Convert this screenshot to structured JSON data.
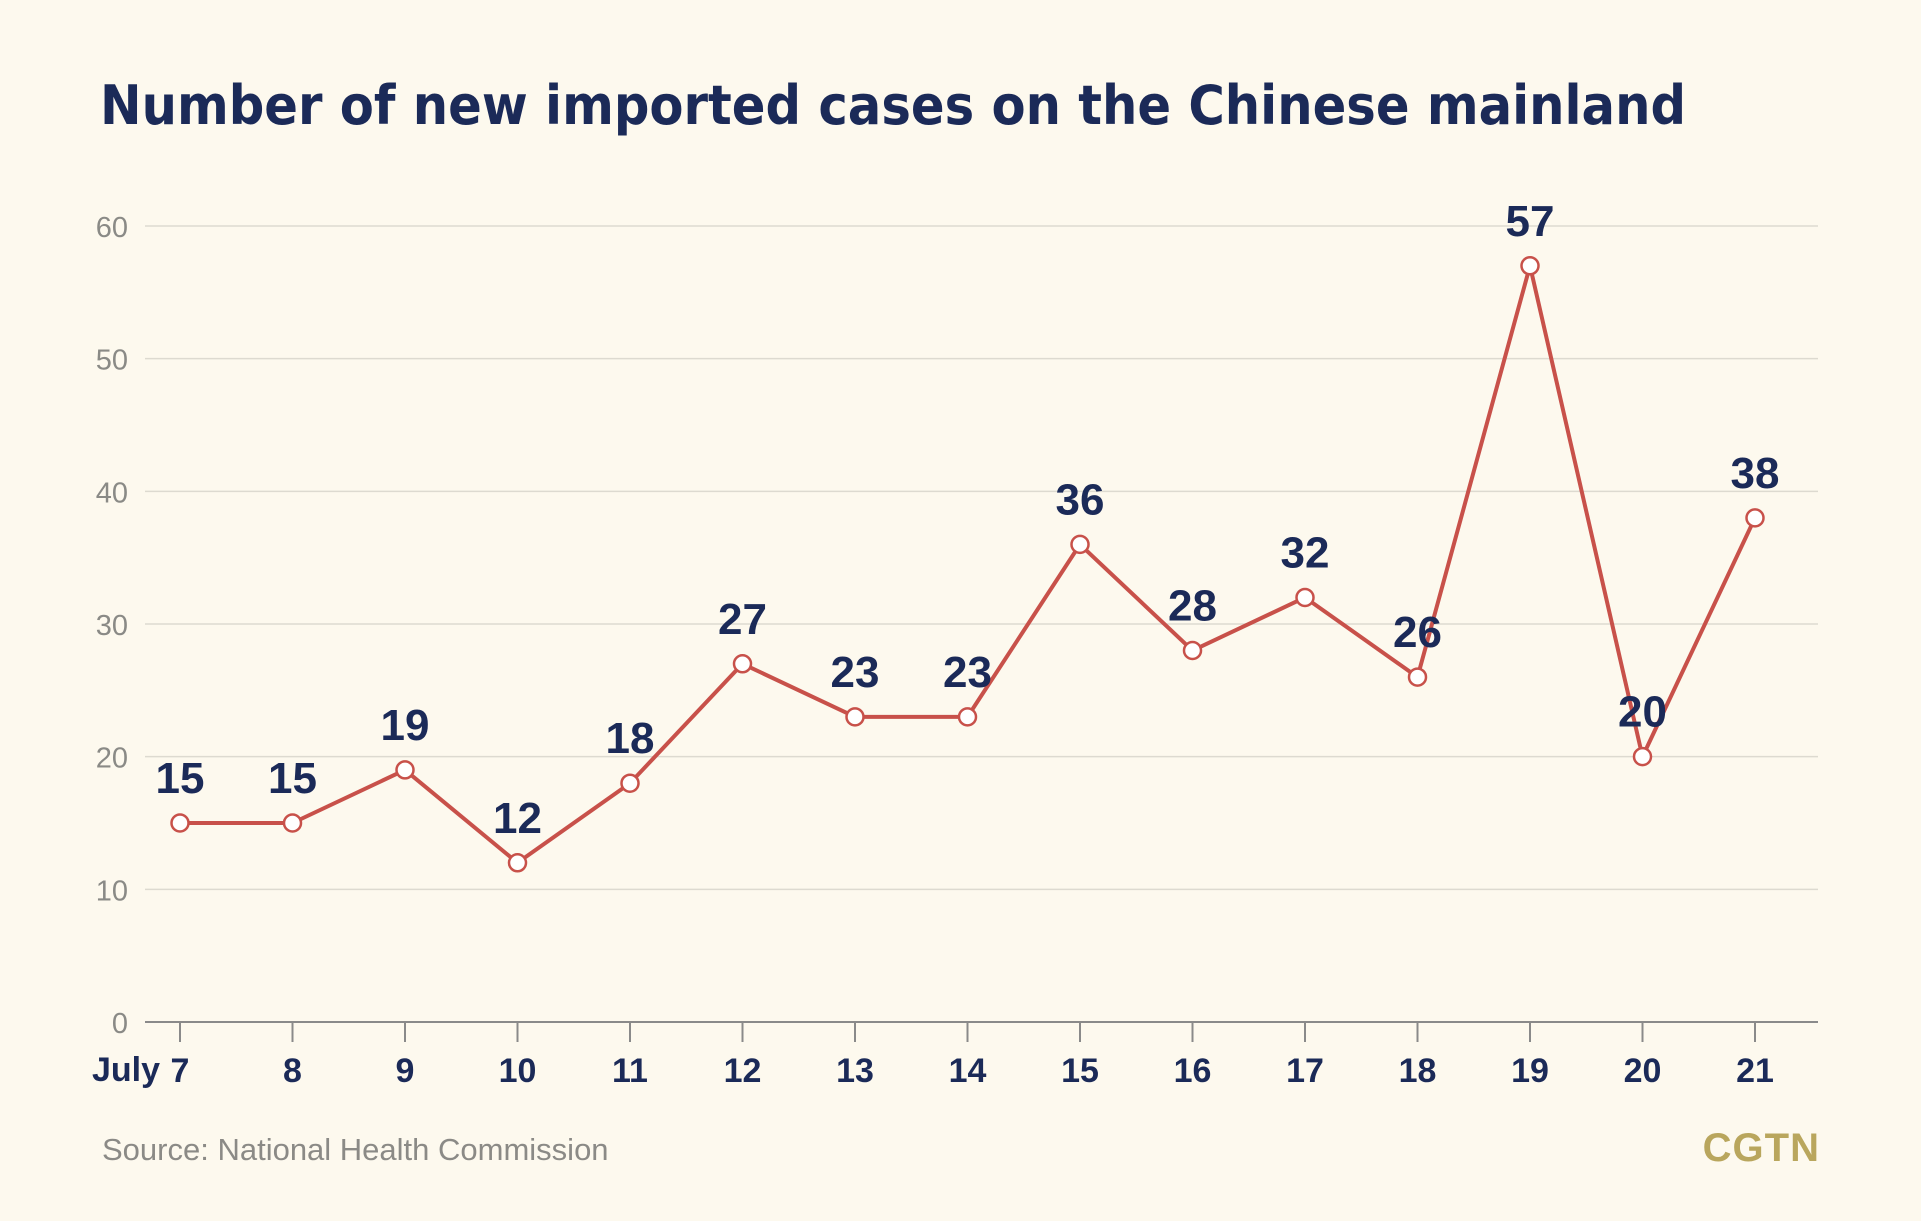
{
  "title": "Number of new imported cases on the Chinese mainland",
  "source": "Source: National Health Commission",
  "brand": {
    "logo": "CGTN",
    "color": "#b9a65d"
  },
  "colors": {
    "background": "#fdf9ee",
    "title": "#1b2a58",
    "line": "#c8514a",
    "marker_fill": "#ffffff",
    "grid": "#dddad0",
    "axis": "#8a8a8a",
    "y_tick_label": "#8a8a86",
    "x_tick_label": "#1b2a58",
    "data_label": "#1b2a58"
  },
  "chart_data": {
    "type": "line",
    "title": "Number of new imported cases on the Chinese mainland",
    "xlabel": "",
    "ylabel": "",
    "x_prefix_label": "July",
    "categories": [
      "7",
      "8",
      "9",
      "10",
      "11",
      "12",
      "13",
      "14",
      "15",
      "16",
      "17",
      "18",
      "19",
      "20",
      "21"
    ],
    "series": [
      {
        "values": [
          15,
          15,
          19,
          12,
          18,
          27,
          23,
          23,
          36,
          28,
          32,
          26,
          57,
          20,
          38
        ]
      }
    ],
    "data_labels": [
      "15",
      "15",
      "19",
      "12",
      "18",
      "27",
      "23",
      "23",
      "36",
      "28",
      "32",
      "26",
      "57",
      "20",
      "38"
    ],
    "ylim": [
      0,
      60
    ],
    "yticks": [
      0,
      10,
      20,
      30,
      40,
      50,
      60
    ],
    "grid": true,
    "legend": "none"
  }
}
